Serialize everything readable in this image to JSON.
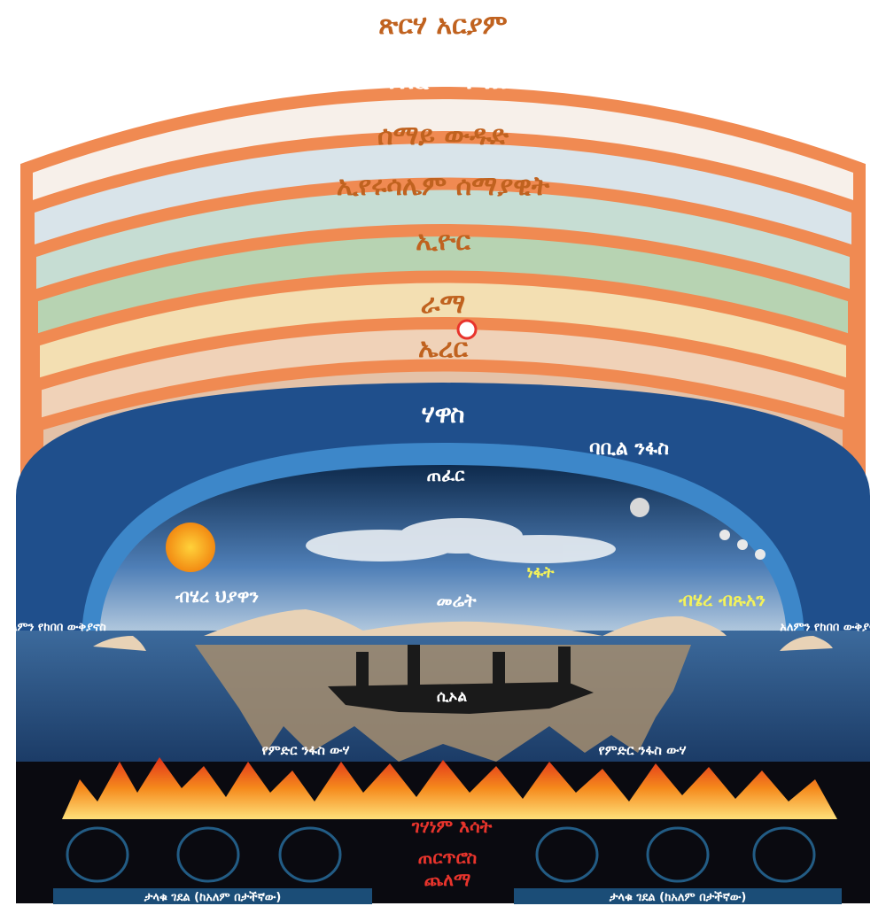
{
  "heavens": [
    {
      "label": "ጽርሃ አርያም"
    },
    {
      "label": "መንበረ መንግስት"
    },
    {
      "label": "ሰማይ ውዱድ"
    },
    {
      "label": "ኢየሩሳሌም ሰማያዊት"
    },
    {
      "label": "ኢዮር"
    },
    {
      "label": "ራማ"
    },
    {
      "label": "ኤረር"
    }
  ],
  "world": {
    "outer_label": "ሃዋስ",
    "arc_label": "ባቢል ንፋስ",
    "firmament_label": "ጠፈር",
    "west_sea": "ብሄረ ህያዋን",
    "center_land": "መሬት",
    "wind_label": "ነፋት",
    "east_sea": "ብሄረ ብጹአን",
    "left_edge_label": "አለምን የከበበ ውቅያኖስ",
    "right_edge_label": "አለምን የከበበ ውቅያኖስ",
    "underworld_label": "ሲኦል",
    "under_waters_left": "የምድር ንፋስ ውሃ",
    "under_waters_right": "የምድር ንፋስ ውሃ"
  },
  "fire": {
    "label": "ገሃነም እሳት"
  },
  "abyss": {
    "label_line1": "ጠርጥሮስ",
    "label_line2": "ጨለማ",
    "left_footer": "ታላቁ ገደል (ከአለም በታችኛው)",
    "right_footer": "ታላቁ ገደል (ከአለም በታችኛው)"
  },
  "colors": {
    "band_orange": "#f08a52",
    "ocean_blue": "#1f4f8c",
    "fire": "#f26a1b"
  }
}
